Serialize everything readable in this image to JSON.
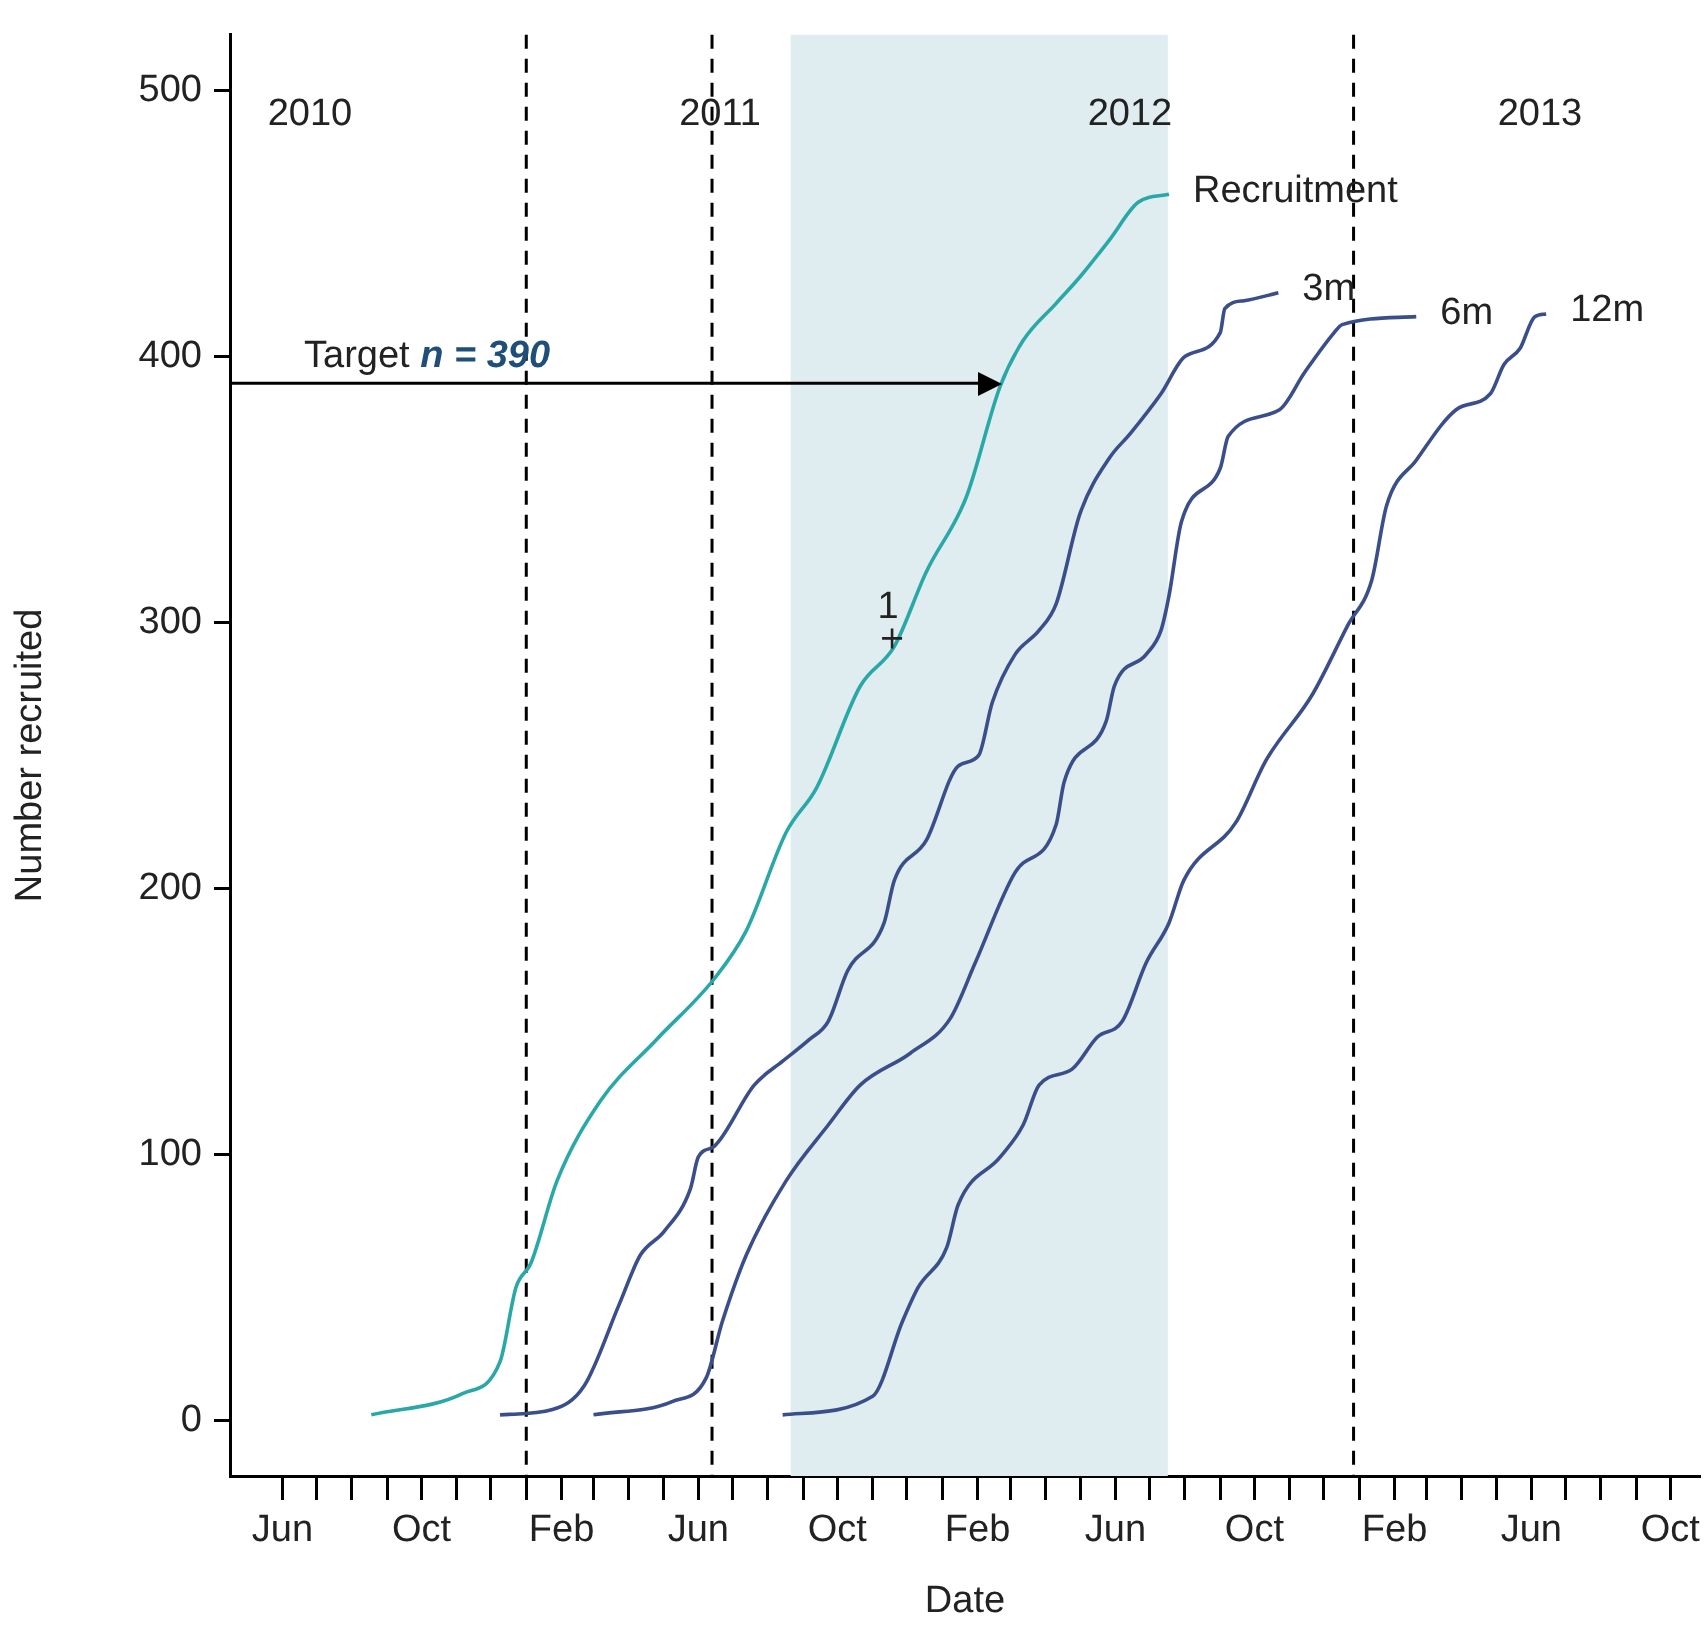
{
  "chart_data": {
    "type": "line",
    "xlabel": "Date",
    "ylabel": "Number recruited",
    "legend": false,
    "grid": false,
    "xlim": [
      "2010-04-16",
      "2013-10-27"
    ],
    "ylim": [
      -21,
      521
    ],
    "xticks": [
      {
        "value": "2010-06-01",
        "label": "Jun"
      },
      {
        "value": "2010-07-01",
        "label": null
      },
      {
        "value": "2010-08-01",
        "label": null
      },
      {
        "value": "2010-09-01",
        "label": null
      },
      {
        "value": "2010-10-01",
        "label": "Oct"
      },
      {
        "value": "2010-11-01",
        "label": null
      },
      {
        "value": "2010-12-01",
        "label": null
      },
      {
        "value": "2011-01-01",
        "label": null
      },
      {
        "value": "2011-02-01",
        "label": "Feb"
      },
      {
        "value": "2011-03-01",
        "label": null
      },
      {
        "value": "2011-04-01",
        "label": null
      },
      {
        "value": "2011-05-01",
        "label": null
      },
      {
        "value": "2011-06-01",
        "label": "Jun"
      },
      {
        "value": "2011-07-01",
        "label": null
      },
      {
        "value": "2011-08-01",
        "label": null
      },
      {
        "value": "2011-09-01",
        "label": null
      },
      {
        "value": "2011-10-01",
        "label": "Oct"
      },
      {
        "value": "2011-11-01",
        "label": null
      },
      {
        "value": "2011-12-01",
        "label": null
      },
      {
        "value": "2012-01-01",
        "label": null
      },
      {
        "value": "2012-02-01",
        "label": "Feb"
      },
      {
        "value": "2012-03-01",
        "label": null
      },
      {
        "value": "2012-04-01",
        "label": null
      },
      {
        "value": "2012-05-01",
        "label": null
      },
      {
        "value": "2012-06-01",
        "label": "Jun"
      },
      {
        "value": "2012-07-01",
        "label": null
      },
      {
        "value": "2012-08-01",
        "label": null
      },
      {
        "value": "2012-09-01",
        "label": null
      },
      {
        "value": "2012-10-01",
        "label": "Oct"
      },
      {
        "value": "2012-11-01",
        "label": null
      },
      {
        "value": "2012-12-01",
        "label": null
      },
      {
        "value": "2013-01-01",
        "label": null
      },
      {
        "value": "2013-02-01",
        "label": "Feb"
      },
      {
        "value": "2013-03-01",
        "label": null
      },
      {
        "value": "2013-04-01",
        "label": null
      },
      {
        "value": "2013-05-01",
        "label": null
      },
      {
        "value": "2013-06-01",
        "label": "Jun"
      },
      {
        "value": "2013-07-01",
        "label": null
      },
      {
        "value": "2013-08-01",
        "label": null
      },
      {
        "value": "2013-09-01",
        "label": null
      },
      {
        "value": "2013-10-01",
        "label": "Oct"
      }
    ],
    "yticks": [
      0,
      100,
      200,
      300,
      400,
      500
    ],
    "series": [
      {
        "name": "Recruitment",
        "color": "#2aa8a8",
        "x": [
          "2010-08-18",
          "2010-11-06",
          "2010-12-09",
          "2010-12-23",
          "2011-01-05",
          "2011-01-28",
          "2011-03-07",
          "2011-04-25",
          "2011-06-15",
          "2011-07-13",
          "2011-08-17",
          "2011-09-13",
          "2011-10-21",
          "2011-11-20",
          "2011-12-18",
          "2012-01-22",
          "2012-02-21",
          "2012-03-12",
          "2012-04-10",
          "2012-05-01",
          "2012-05-27",
          "2012-06-21",
          "2012-07-18"
        ],
        "values": [
          2,
          10,
          22,
          50,
          59,
          90,
          120,
          143,
          166,
          184,
          221,
          238,
          276,
          291,
          319,
          347,
          389,
          406,
          420,
          430,
          444,
          458,
          461
        ]
      },
      {
        "name": "3m",
        "color": "#3a4f8a",
        "x": [
          "2010-12-09",
          "2011-01-24",
          "2011-02-21",
          "2011-03-24",
          "2011-04-11",
          "2011-05-02",
          "2011-05-25",
          "2011-06-01",
          "2011-06-15",
          "2011-07-20",
          "2011-08-14",
          "2011-09-06",
          "2011-09-23",
          "2011-10-10",
          "2011-11-11",
          "2011-11-20",
          "2011-12-18",
          "2012-01-15",
          "2012-02-02",
          "2012-02-14",
          "2012-03-05",
          "2012-03-26",
          "2012-04-10",
          "2012-05-01",
          "2012-05-27",
          "2012-06-14",
          "2012-07-11",
          "2012-08-01",
          "2012-09-01",
          "2012-09-05",
          "2012-09-22",
          "2012-10-22"
        ],
        "values": [
          2,
          4,
          13,
          44,
          62,
          71,
          87,
          99,
          103,
          126,
          135,
          143,
          150,
          169,
          187,
          203,
          218,
          246,
          250,
          270,
          288,
          297,
          307,
          341,
          362,
          371,
          386,
          400,
          409,
          418,
          421,
          424
        ]
      },
      {
        "name": "6m",
        "color": "#3a4f8a",
        "x": [
          "2011-03-01",
          "2011-05-09",
          "2011-06-08",
          "2011-06-22",
          "2011-07-13",
          "2011-08-17",
          "2011-09-23",
          "2011-10-21",
          "2011-12-04",
          "2012-01-08",
          "2012-01-30",
          "2012-03-05",
          "2012-04-10",
          "2012-04-17",
          "2012-05-24",
          "2012-05-31",
          "2012-06-28",
          "2012-07-11",
          "2012-07-18",
          "2012-07-29",
          "2012-09-01",
          "2012-09-08",
          "2012-10-23",
          "2012-11-14",
          "2012-12-10",
          "2012-12-17",
          "2013-02-20"
        ],
        "values": [
          2,
          7,
          16,
          37,
          62,
          90,
          111,
          126,
          138,
          151,
          172,
          206,
          224,
          240,
          263,
          276,
          288,
          297,
          310,
          338,
          358,
          370,
          380,
          394,
          409,
          412,
          415
        ]
      },
      {
        "name": "12m",
        "color": "#3a4f8a",
        "x": [
          "2011-08-14",
          "2011-11-01",
          "2011-11-27",
          "2011-12-11",
          "2012-01-05",
          "2012-01-15",
          "2012-02-21",
          "2012-03-12",
          "2012-03-26",
          "2012-04-24",
          "2012-05-16",
          "2012-06-07",
          "2012-06-28",
          "2012-07-18",
          "2012-07-31",
          "2012-09-15",
          "2012-10-11",
          "2012-11-21",
          "2012-12-22",
          "2013-01-12",
          "2013-01-25",
          "2013-02-20",
          "2013-03-27",
          "2013-04-26",
          "2013-05-08",
          "2013-05-22",
          "2013-06-04",
          "2013-06-14"
        ],
        "values": [
          2,
          9,
          37,
          50,
          65,
          81,
          99,
          111,
          126,
          132,
          144,
          150,
          172,
          187,
          203,
          225,
          248,
          273,
          299,
          316,
          344,
          361,
          380,
          386,
          397,
          403,
          415,
          416
        ]
      }
    ],
    "ref_lines": [
      {
        "axis": "y",
        "value": 390,
        "label": "Target n = 390",
        "line_style": "solid",
        "color": "#000000"
      },
      {
        "axis": "x",
        "value": "2011-01-01",
        "line_style": "dashed",
        "color": "#000000"
      },
      {
        "axis": "x",
        "value": "2011-06-13",
        "line_style": "dashed",
        "color": "#000000"
      },
      {
        "axis": "x",
        "value": "2012-12-27",
        "line_style": "dashed",
        "color": "#000000"
      }
    ],
    "bands": [
      {
        "axis": "x",
        "from": "2011-08-21",
        "to": "2012-07-17",
        "color": "#dfedf0"
      }
    ],
    "annotations": [
      "2010",
      "2011",
      "2012",
      "2013",
      {
        "text": "1",
        "x": "2011-11-18",
        "y": 294
      }
    ]
  }
}
